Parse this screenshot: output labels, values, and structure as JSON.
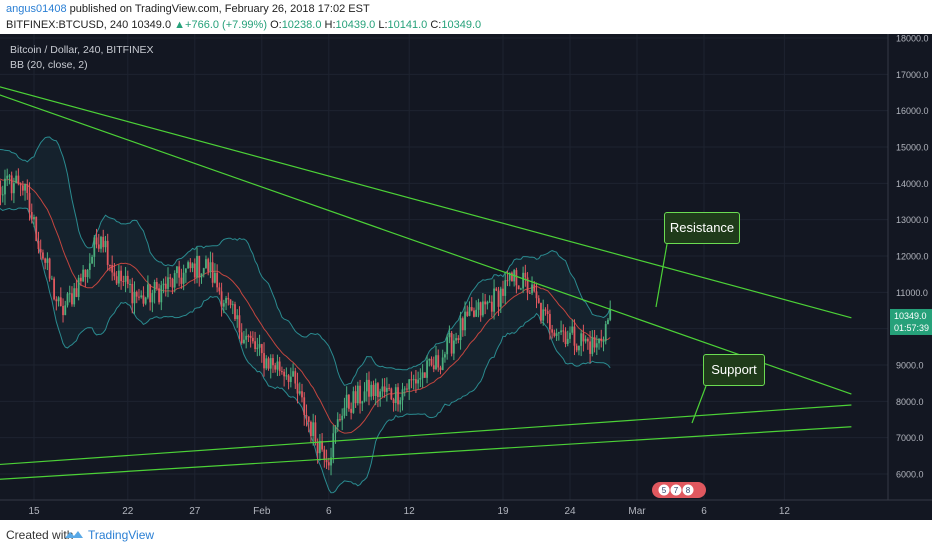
{
  "header": {
    "author": "angus01408",
    "published_text": "published on TradingView.com, February 26, 2018 17:02 EST",
    "symbol": "BITFINEX:BTCUSD, 240",
    "last": "10349.0",
    "change": "+766.0 (+7.99%)",
    "o_label": "O:",
    "o_value": "10238.0",
    "h_label": "H:",
    "h_value": "10439.0",
    "l_label": "L:",
    "l_value": "10141.0",
    "c_label": "C:",
    "c_value": "10349.0"
  },
  "legend": {
    "line1": "Bitcoin / Dollar, 240, BITFINEX",
    "line2": "BB (20, close, 2)"
  },
  "callouts": {
    "resistance": "Resistance",
    "support": "Support"
  },
  "price_badge": {
    "price": "10349.0",
    "timer": "01:57:39"
  },
  "events_badge": [
    "5",
    "7",
    "8"
  ],
  "footer": {
    "created_with": "Created with",
    "brand": "TradingView"
  },
  "colors": {
    "background": "#131722",
    "up_candle": "#4caf7d",
    "down_candle": "#e0585f",
    "bb_band": "#2a8a8f",
    "bb_basis": "#c2453f",
    "trendline": "#4cd137",
    "price_badge": "#26a17a"
  },
  "chart_data": {
    "type": "candlestick",
    "title": "Bitcoin / Dollar, 240, BITFINEX",
    "x_ticks": [
      "15",
      "22",
      "27",
      "Feb",
      "6",
      "12",
      "19",
      "24",
      "Mar",
      "6",
      "12"
    ],
    "y_ticks": [
      "6000.0",
      "7000.0",
      "8000.0",
      "9000.0",
      "10000.0",
      "11000.0",
      "12000.0",
      "13000.0",
      "14000.0",
      "15000.0",
      "16000.0",
      "17000.0",
      "18000.0"
    ],
    "ylim": [
      5500,
      18100
    ],
    "price_path": [
      {
        "date": "2018-01-10",
        "price": 14400
      },
      {
        "date": "2018-01-12",
        "price": 13800
      },
      {
        "date": "2018-01-14",
        "price": 14100
      },
      {
        "date": "2018-01-16",
        "price": 11600
      },
      {
        "date": "2018-01-17",
        "price": 10400
      },
      {
        "date": "2018-01-19",
        "price": 11700
      },
      {
        "date": "2018-01-20",
        "price": 12700
      },
      {
        "date": "2018-01-21",
        "price": 11500
      },
      {
        "date": "2018-01-23",
        "price": 10800
      },
      {
        "date": "2018-01-25",
        "price": 11200
      },
      {
        "date": "2018-01-27",
        "price": 11700
      },
      {
        "date": "2018-01-28",
        "price": 11700
      },
      {
        "date": "2018-01-30",
        "price": 10200
      },
      {
        "date": "2018-02-01",
        "price": 9200
      },
      {
        "date": "2018-02-03",
        "price": 8800
      },
      {
        "date": "2018-02-05",
        "price": 7000
      },
      {
        "date": "2018-02-06",
        "price": 6500
      },
      {
        "date": "2018-02-07",
        "price": 7800
      },
      {
        "date": "2018-02-09",
        "price": 8300
      },
      {
        "date": "2018-02-11",
        "price": 8200
      },
      {
        "date": "2018-02-14",
        "price": 9000
      },
      {
        "date": "2018-02-16",
        "price": 10100
      },
      {
        "date": "2018-02-18",
        "price": 10700
      },
      {
        "date": "2018-02-20",
        "price": 11400
      },
      {
        "date": "2018-02-21",
        "price": 11100
      },
      {
        "date": "2018-02-22",
        "price": 10300
      },
      {
        "date": "2018-02-24",
        "price": 9800
      },
      {
        "date": "2018-02-26",
        "price": 9500
      },
      {
        "date": "2018-02-27",
        "price": 10349
      }
    ],
    "indicator": "BB (20, close, 2)",
    "trendlines": [
      {
        "name": "Resistance",
        "points": [
          {
            "date": "2018-01-10",
            "price": 16900
          },
          {
            "date": "2018-03-17",
            "price": 10300
          }
        ]
      },
      {
        "name": "Resistance",
        "points": [
          {
            "date": "2018-01-10",
            "price": 16750
          },
          {
            "date": "2018-03-17",
            "price": 8200
          }
        ]
      },
      {
        "name": "Support",
        "points": [
          {
            "date": "2018-01-10",
            "price": 6200
          },
          {
            "date": "2018-03-17",
            "price": 7900
          }
        ]
      },
      {
        "name": "Support",
        "points": [
          {
            "date": "2018-01-10",
            "price": 5800
          },
          {
            "date": "2018-03-17",
            "price": 7300
          }
        ]
      }
    ]
  }
}
